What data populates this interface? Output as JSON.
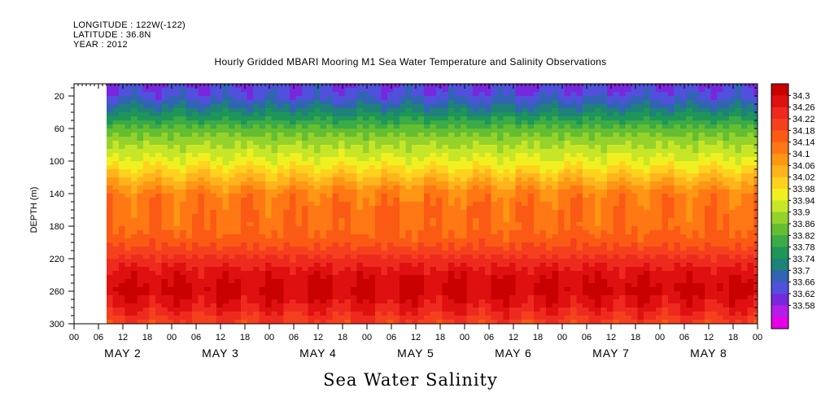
{
  "header": {
    "longitude": "LONGITUDE : 122W(-122)",
    "latitude": "LATITUDE : 36.8N",
    "year": "YEAR : 2012",
    "title": "Hourly Gridded MBARI Mooring M1 Sea Water Temperature and Salinity Observations",
    "subtitle": "Sea Water Salinity"
  },
  "chart_data": {
    "type": "heatmap",
    "title": "Hourly Gridded MBARI Mooring M1 Sea Water Temperature and Salinity Observations",
    "variable": "Sea Water Salinity",
    "ylabel": "DEPTH (m)",
    "xlabel": "",
    "y_axis": {
      "ticks": [
        20,
        60,
        100,
        140,
        180,
        220,
        260,
        300
      ],
      "range": [
        5,
        300
      ],
      "inverted": true
    },
    "x_axis": {
      "range_hours": [
        0,
        168
      ],
      "hour_tick_labels": [
        "00",
        "06",
        "12",
        "18",
        "00",
        "06",
        "12",
        "18",
        "00",
        "06",
        "12",
        "18",
        "00",
        "06",
        "12",
        "18",
        "00",
        "06",
        "12",
        "18",
        "00",
        "06",
        "12",
        "18",
        "00",
        "06",
        "12",
        "18",
        "00"
      ],
      "day_labels": [
        "MAY  2",
        "MAY  3",
        "MAY  4",
        "MAY  5",
        "MAY  6",
        "MAY  7",
        "MAY  8"
      ]
    },
    "colorbar": {
      "labels": [
        "34.3",
        "34.26",
        "34.22",
        "34.18",
        "34.14",
        "34.1",
        "34.06",
        "34.02",
        "33.98",
        "33.94",
        "33.9",
        "33.86",
        "33.82",
        "33.78",
        "33.74",
        "33.7",
        "33.66",
        "33.62",
        "33.58"
      ],
      "colors": [
        "#c80000",
        "#de1010",
        "#ee2a1e",
        "#f5401e",
        "#fb5a14",
        "#ff7814",
        "#ff9614",
        "#ffb41e",
        "#ffd21e",
        "#f0f020",
        "#c8e628",
        "#96d22c",
        "#64be32",
        "#3caa46",
        "#1e965a",
        "#1e8278",
        "#3264b4",
        "#5050dc",
        "#7828dc",
        "#b41ee6",
        "#e600e6"
      ],
      "min": 33.58,
      "max": 34.3
    },
    "data_start_hour": 8,
    "profile": [
      {
        "depth": 5,
        "value": 33.67
      },
      {
        "depth": 20,
        "value": 33.69
      },
      {
        "depth": 40,
        "value": 33.77
      },
      {
        "depth": 60,
        "value": 33.86
      },
      {
        "depth": 80,
        "value": 33.92
      },
      {
        "depth": 100,
        "value": 33.97
      },
      {
        "depth": 120,
        "value": 34.04
      },
      {
        "depth": 140,
        "value": 34.11
      },
      {
        "depth": 160,
        "value": 34.13
      },
      {
        "depth": 180,
        "value": 34.13
      },
      {
        "depth": 200,
        "value": 34.16
      },
      {
        "depth": 220,
        "value": 34.22
      },
      {
        "depth": 240,
        "value": 34.27
      },
      {
        "depth": 260,
        "value": 34.29
      },
      {
        "depth": 280,
        "value": 34.25
      },
      {
        "depth": 300,
        "value": 34.19
      }
    ]
  }
}
